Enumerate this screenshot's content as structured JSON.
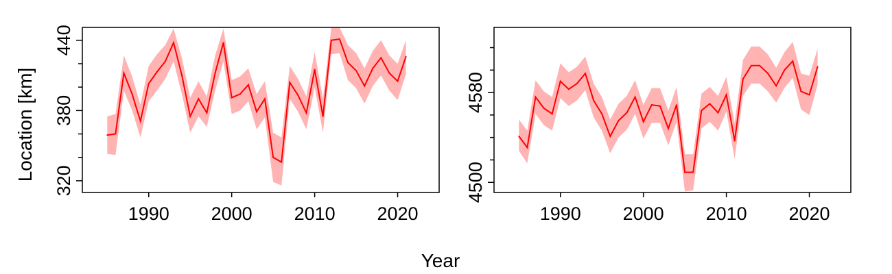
{
  "figure": {
    "ylabel": "Location [km]",
    "xlabel": "Year"
  },
  "colors": {
    "line": "#ff0000",
    "band": "#ffb3b3",
    "axis": "#000000"
  },
  "chart_data": [
    {
      "type": "line",
      "xlim": [
        1982,
        2025
      ],
      "ylim": [
        310,
        451
      ],
      "xticks": [
        1990,
        2000,
        2010,
        2020
      ],
      "yticks_labeled": [
        320,
        380,
        440
      ],
      "yticks_minor": [
        340,
        360,
        400,
        420
      ],
      "series": [
        {
          "x": [
            1985,
            1986,
            1987,
            1988,
            1989,
            1990,
            1991,
            1992,
            1993,
            1994,
            1995,
            1996,
            1997,
            1998,
            1999,
            2000,
            2001,
            2002,
            2003,
            2004,
            2005,
            2006,
            2007,
            2008,
            2009,
            2010,
            2011,
            2012,
            2013,
            2014,
            2015,
            2016,
            2017,
            2018,
            2019,
            2020,
            2021
          ],
          "y": [
            359,
            360,
            412,
            394,
            371,
            403,
            413,
            422,
            438,
            410,
            375,
            390,
            378,
            412,
            438,
            391,
            394,
            402,
            379,
            390,
            340,
            336,
            404,
            393,
            378,
            415,
            375,
            440,
            441,
            421,
            414,
            401,
            416,
            425,
            412,
            405,
            426
          ],
          "lower": [
            343,
            342,
            397,
            380,
            357,
            388,
            397,
            407,
            422,
            394,
            361,
            375,
            366,
            397,
            422,
            377,
            380,
            388,
            364,
            374,
            319,
            316,
            390,
            379,
            364,
            400,
            361,
            428,
            429,
            406,
            399,
            386,
            401,
            410,
            397,
            389,
            411
          ],
          "upper": [
            375,
            377,
            427,
            409,
            385,
            418,
            428,
            436,
            450,
            425,
            391,
            405,
            392,
            427,
            450,
            406,
            409,
            416,
            394,
            405,
            361,
            357,
            418,
            407,
            392,
            430,
            390,
            451,
            451,
            436,
            429,
            416,
            431,
            440,
            427,
            420,
            440
          ]
        }
      ]
    },
    {
      "type": "line",
      "xlim": [
        1982,
        2025
      ],
      "ylim": [
        4491,
        4638
      ],
      "xticks": [
        1990,
        2000,
        2010,
        2020
      ],
      "yticks_labeled": [
        4500,
        4580
      ],
      "yticks_minor": [
        4520,
        4540,
        4560,
        4600,
        4620
      ],
      "series": [
        {
          "x": [
            1985,
            1986,
            1987,
            1988,
            1989,
            1990,
            1991,
            1992,
            1993,
            1994,
            1995,
            1996,
            1997,
            1998,
            1999,
            2000,
            2001,
            2002,
            2003,
            2004,
            2005,
            2006,
            2007,
            2008,
            2009,
            2010,
            2011,
            2012,
            2013,
            2014,
            2015,
            2016,
            2017,
            2018,
            2019,
            2020,
            2021
          ],
          "y": [
            4541,
            4531,
            4576,
            4566,
            4561,
            4590,
            4583,
            4588,
            4597,
            4573,
            4561,
            4541,
            4555,
            4562,
            4576,
            4554,
            4569,
            4568,
            4548,
            4569,
            4509,
            4509,
            4564,
            4570,
            4562,
            4578,
            4537,
            4592,
            4604,
            4604,
            4597,
            4586,
            4600,
            4608,
            4581,
            4578,
            4603
          ],
          "lower": [
            4528,
            4517,
            4561,
            4551,
            4546,
            4575,
            4568,
            4573,
            4582,
            4558,
            4546,
            4526,
            4540,
            4547,
            4561,
            4539,
            4553,
            4553,
            4533,
            4554,
            4492,
            4493,
            4548,
            4554,
            4546,
            4563,
            4521,
            4577,
            4588,
            4588,
            4581,
            4571,
            4584,
            4593,
            4565,
            4560,
            4587
          ],
          "upper": [
            4556,
            4546,
            4591,
            4581,
            4576,
            4606,
            4598,
            4603,
            4612,
            4588,
            4576,
            4556,
            4570,
            4577,
            4591,
            4569,
            4584,
            4584,
            4564,
            4585,
            4525,
            4525,
            4579,
            4585,
            4577,
            4594,
            4553,
            4609,
            4621,
            4621,
            4614,
            4602,
            4616,
            4625,
            4597,
            4595,
            4619
          ]
        }
      ]
    }
  ]
}
